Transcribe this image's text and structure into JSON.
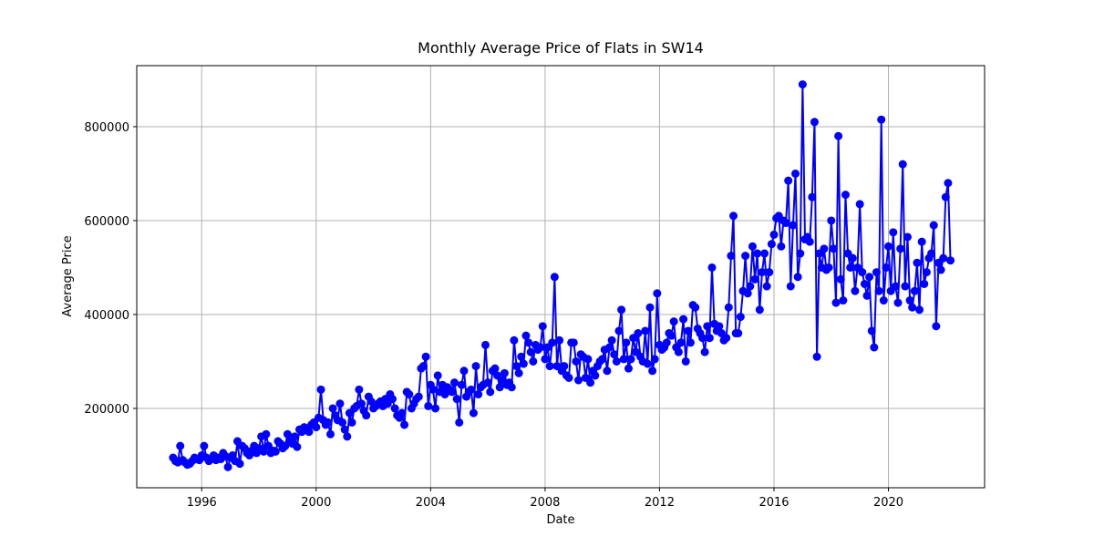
{
  "chart_data": {
    "type": "line",
    "title": "Monthly Average Price of Flats in SW14",
    "x_label": "Date",
    "y_label": "Average Price",
    "x": [
      1995,
      1995.083,
      1995.167,
      1995.25,
      1995.333,
      1995.417,
      1995.5,
      1995.583,
      1995.667,
      1995.75,
      1995.833,
      1995.917,
      1996,
      1996.083,
      1996.167,
      1996.25,
      1996.333,
      1996.417,
      1996.5,
      1996.583,
      1996.667,
      1996.75,
      1996.833,
      1996.917,
      1997,
      1997.083,
      1997.167,
      1997.25,
      1997.333,
      1997.417,
      1997.5,
      1997.583,
      1997.667,
      1997.75,
      1997.833,
      1997.917,
      1998,
      1998.083,
      1998.167,
      1998.25,
      1998.333,
      1998.417,
      1998.5,
      1998.583,
      1998.667,
      1998.75,
      1998.833,
      1998.917,
      1999,
      1999.083,
      1999.167,
      1999.25,
      1999.333,
      1999.417,
      1999.5,
      1999.583,
      1999.667,
      1999.75,
      1999.833,
      1999.917,
      2000,
      2000.083,
      2000.167,
      2000.25,
      2000.333,
      2000.417,
      2000.5,
      2000.583,
      2000.667,
      2000.75,
      2000.833,
      2000.917,
      2001,
      2001.083,
      2001.167,
      2001.25,
      2001.333,
      2001.417,
      2001.5,
      2001.583,
      2001.667,
      2001.75,
      2001.833,
      2001.917,
      2002,
      2002.083,
      2002.167,
      2002.25,
      2002.333,
      2002.417,
      2002.5,
      2002.583,
      2002.667,
      2002.75,
      2002.833,
      2002.917,
      2003,
      2003.083,
      2003.167,
      2003.25,
      2003.333,
      2003.417,
      2003.5,
      2003.583,
      2003.667,
      2003.75,
      2003.833,
      2003.917,
      2004,
      2004.083,
      2004.167,
      2004.25,
      2004.333,
      2004.417,
      2004.5,
      2004.583,
      2004.667,
      2004.75,
      2004.833,
      2004.917,
      2005,
      2005.083,
      2005.167,
      2005.25,
      2005.333,
      2005.417,
      2005.5,
      2005.583,
      2005.667,
      2005.75,
      2005.833,
      2005.917,
      2006,
      2006.083,
      2006.167,
      2006.25,
      2006.333,
      2006.417,
      2006.5,
      2006.583,
      2006.667,
      2006.75,
      2006.833,
      2006.917,
      2007,
      2007.083,
      2007.167,
      2007.25,
      2007.333,
      2007.417,
      2007.5,
      2007.583,
      2007.667,
      2007.75,
      2007.833,
      2007.917,
      2008,
      2008.083,
      2008.167,
      2008.25,
      2008.333,
      2008.417,
      2008.5,
      2008.583,
      2008.667,
      2008.75,
      2008.833,
      2008.917,
      2009,
      2009.083,
      2009.167,
      2009.25,
      2009.333,
      2009.417,
      2009.5,
      2009.583,
      2009.667,
      2009.75,
      2009.833,
      2009.917,
      2010,
      2010.083,
      2010.167,
      2010.25,
      2010.333,
      2010.417,
      2010.5,
      2010.583,
      2010.667,
      2010.75,
      2010.833,
      2010.917,
      2011,
      2011.083,
      2011.167,
      2011.25,
      2011.333,
      2011.417,
      2011.5,
      2011.583,
      2011.667,
      2011.75,
      2011.833,
      2011.917,
      2012,
      2012.083,
      2012.167,
      2012.25,
      2012.333,
      2012.417,
      2012.5,
      2012.583,
      2012.667,
      2012.75,
      2012.833,
      2012.917,
      2013,
      2013.083,
      2013.167,
      2013.25,
      2013.333,
      2013.417,
      2013.5,
      2013.583,
      2013.667,
      2013.75,
      2013.833,
      2013.917,
      2014,
      2014.083,
      2014.167,
      2014.25,
      2014.333,
      2014.417,
      2014.5,
      2014.583,
      2014.667,
      2014.75,
      2014.833,
      2014.917,
      2015,
      2015.083,
      2015.167,
      2015.25,
      2015.333,
      2015.417,
      2015.5,
      2015.583,
      2015.667,
      2015.75,
      2015.833,
      2015.917,
      2016,
      2016.083,
      2016.167,
      2016.25,
      2016.333,
      2016.417,
      2016.5,
      2016.583,
      2016.667,
      2016.75,
      2016.833,
      2016.917,
      2017,
      2017.083,
      2017.167,
      2017.25,
      2017.333,
      2017.417,
      2017.5,
      2017.583,
      2017.667,
      2017.75,
      2017.833,
      2017.917,
      2018,
      2018.083,
      2018.167,
      2018.25,
      2018.333,
      2018.417,
      2018.5,
      2018.583,
      2018.667,
      2018.75,
      2018.833,
      2018.917,
      2019,
      2019.083,
      2019.167,
      2019.25,
      2019.333,
      2019.417,
      2019.5,
      2019.583,
      2019.667,
      2019.75,
      2019.833,
      2019.917,
      2020,
      2020.083,
      2020.167,
      2020.25,
      2020.333,
      2020.417,
      2020.5,
      2020.583,
      2020.667,
      2020.75,
      2020.833,
      2020.917,
      2021,
      2021.083,
      2021.167,
      2021.25,
      2021.333,
      2021.417,
      2021.5,
      2021.583,
      2021.667,
      2021.75,
      2021.833,
      2021.917,
      2022,
      2022.083,
      2022.167
    ],
    "series": [
      {
        "color": "#0000ff",
        "values": [
          95000,
          88000,
          85000,
          120000,
          90000,
          85000,
          80000,
          82000,
          88000,
          95000,
          92000,
          90000,
          100000,
          120000,
          95000,
          88000,
          92000,
          100000,
          90000,
          95000,
          92000,
          105000,
          98000,
          75000,
          95000,
          100000,
          88000,
          130000,
          82000,
          120000,
          115000,
          105000,
          100000,
          110000,
          120000,
          105000,
          115000,
          140000,
          108000,
          145000,
          120000,
          105000,
          110000,
          108000,
          130000,
          125000,
          115000,
          120000,
          145000,
          130000,
          125000,
          140000,
          118000,
          155000,
          150000,
          160000,
          155000,
          150000,
          165000,
          170000,
          160000,
          180000,
          240000,
          175000,
          165000,
          170000,
          145000,
          200000,
          185000,
          175000,
          210000,
          170000,
          155000,
          140000,
          190000,
          170000,
          200000,
          205000,
          240000,
          210000,
          195000,
          185000,
          225000,
          215000,
          200000,
          205000,
          210000,
          215000,
          205000,
          220000,
          210000,
          230000,
          220000,
          200000,
          185000,
          180000,
          190000,
          165000,
          235000,
          230000,
          200000,
          210000,
          220000,
          225000,
          285000,
          290000,
          310000,
          205000,
          250000,
          240000,
          200000,
          270000,
          235000,
          250000,
          230000,
          245000,
          240000,
          235000,
          255000,
          220000,
          170000,
          250000,
          280000,
          225000,
          235000,
          240000,
          190000,
          290000,
          230000,
          245000,
          250000,
          335000,
          255000,
          235000,
          280000,
          285000,
          270000,
          245000,
          260000,
          275000,
          250000,
          255000,
          245000,
          345000,
          290000,
          275000,
          310000,
          295000,
          355000,
          340000,
          320000,
          300000,
          335000,
          325000,
          330000,
          375000,
          305000,
          330000,
          290000,
          340000,
          480000,
          290000,
          345000,
          280000,
          290000,
          270000,
          265000,
          340000,
          340000,
          300000,
          260000,
          315000,
          310000,
          265000,
          305000,
          255000,
          280000,
          270000,
          290000,
          300000,
          305000,
          325000,
          280000,
          330000,
          345000,
          315000,
          300000,
          365000,
          410000,
          305000,
          340000,
          285000,
          305000,
          350000,
          320000,
          360000,
          310000,
          300000,
          365000,
          295000,
          415000,
          280000,
          305000,
          445000,
          335000,
          325000,
          330000,
          340000,
          360000,
          355000,
          385000,
          330000,
          320000,
          340000,
          390000,
          300000,
          365000,
          340000,
          420000,
          415000,
          370000,
          360000,
          350000,
          320000,
          375000,
          350000,
          500000,
          380000,
          365000,
          375000,
          360000,
          345000,
          350000,
          415000,
          525000,
          610000,
          360000,
          360000,
          395000,
          450000,
          525000,
          445000,
          460000,
          545000,
          475000,
          530000,
          410000,
          490000,
          530000,
          460000,
          490000,
          550000,
          570000,
          605000,
          610000,
          545000,
          600000,
          595000,
          685000,
          460000,
          590000,
          700000,
          480000,
          530000,
          890000,
          560000,
          565000,
          555000,
          650000,
          810000,
          310000,
          530000,
          500000,
          540000,
          495000,
          500000,
          600000,
          540000,
          425000,
          780000,
          475000,
          430000,
          655000,
          530000,
          500000,
          520000,
          450000,
          500000,
          635000,
          490000,
          465000,
          440000,
          480000,
          365000,
          330000,
          490000,
          450000,
          815000,
          430000,
          500000,
          545000,
          450000,
          575000,
          460000,
          425000,
          540000,
          720000,
          460000,
          565000,
          430000,
          415000,
          450000,
          510000,
          410000,
          555000,
          465000,
          490000,
          520000,
          530000,
          590000,
          375000,
          510000,
          495000,
          520000,
          650000,
          680000,
          515000
        ]
      }
    ],
    "xlim": [
      1993.73,
      2023.36
    ],
    "xticks": [
      1996,
      2000,
      2004,
      2008,
      2012,
      2016,
      2020
    ],
    "ylim": [
      31000,
      930000
    ],
    "yticks": [
      200000,
      400000,
      600000,
      800000
    ],
    "grid": true
  }
}
